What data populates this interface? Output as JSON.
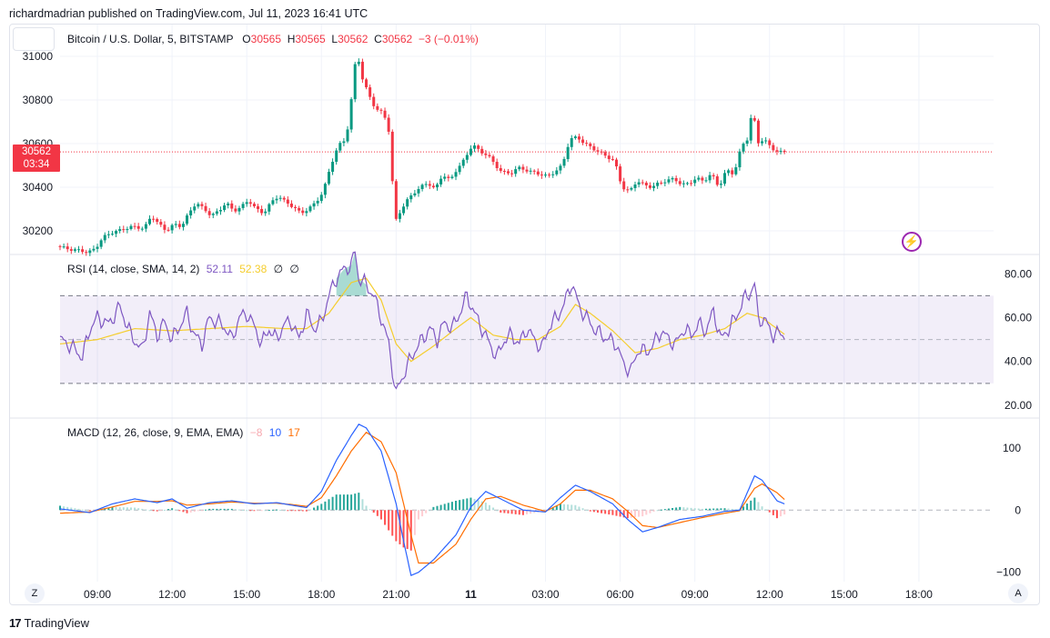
{
  "caption": "richardmadrian published on TradingView.com, Jul 11, 2023 16:41 UTC",
  "legend": {
    "symbol": "Bitcoin / U.S. Dollar, 5, BITSTAMP",
    "o_label": "O",
    "o_value": "30565",
    "h_label": "H",
    "h_value": "30565",
    "l_label": "L",
    "l_value": "30562",
    "c_label": "C",
    "c_value": "30562",
    "change": "−3 (−0.01%)"
  },
  "last_price": {
    "price": "30562",
    "countdown": "03:34"
  },
  "rsi_legend": {
    "title": "RSI (14, close, SMA, 14, 2)",
    "rsi": "52.11",
    "sma": "52.38",
    "n1": "∅",
    "n2": "∅"
  },
  "macd_legend": {
    "title": "MACD (12, 26, close, 9, EMA, EMA)",
    "hist": "−8",
    "macd": "10",
    "signal": "17"
  },
  "buttons": {
    "zoom": "Z",
    "auto": "A"
  },
  "footer": {
    "mark": "17",
    "brand": "TradingView"
  },
  "colors": {
    "up": "#089981",
    "down": "#f23645",
    "rsi": "#7e57c2",
    "rsi_ma": "#f5cd2c",
    "macd": "#2962ff",
    "signal": "#ff6d00"
  },
  "chart_data": [
    {
      "type": "candlestick",
      "x_ticks": [
        "09:00",
        "12:00",
        "15:00",
        "18:00",
        "21:00",
        "11",
        "03:00",
        "06:00",
        "09:00",
        "12:00",
        "15:00",
        "18:00"
      ],
      "y_ticks": [
        "31000",
        "30800",
        "30600",
        "30400",
        "30200"
      ],
      "ylim": [
        30100,
        31050
      ],
      "last_price": 30562,
      "close_path": [
        [
          0,
          30130
        ],
        [
          3,
          30115
        ],
        [
          6,
          30110
        ],
        [
          8,
          30100
        ],
        [
          10,
          30120
        ],
        [
          12,
          30170
        ],
        [
          14,
          30190
        ],
        [
          17,
          30205
        ],
        [
          20,
          30220
        ],
        [
          23,
          30210
        ],
        [
          25,
          30270
        ],
        [
          27,
          30230
        ],
        [
          29,
          30200
        ],
        [
          31,
          30230
        ],
        [
          33,
          30220
        ],
        [
          35,
          30280
        ],
        [
          37,
          30330
        ],
        [
          39,
          30300
        ],
        [
          41,
          30270
        ],
        [
          43,
          30290
        ],
        [
          45,
          30330
        ],
        [
          47,
          30290
        ],
        [
          49,
          30310
        ],
        [
          51,
          30340
        ],
        [
          53,
          30300
        ],
        [
          55,
          30280
        ],
        [
          57,
          30330
        ],
        [
          59,
          30360
        ],
        [
          61,
          30330
        ],
        [
          63,
          30310
        ],
        [
          65,
          30280
        ],
        [
          67,
          30300
        ],
        [
          69,
          30330
        ],
        [
          71,
          30380
        ],
        [
          73,
          30500
        ],
        [
          75,
          30590
        ],
        [
          77,
          30620
        ],
        [
          78,
          30720
        ],
        [
          79,
          30880
        ],
        [
          80,
          31040
        ],
        [
          81,
          30920
        ],
        [
          83,
          30830
        ],
        [
          85,
          30760
        ],
        [
          87,
          30740
        ],
        [
          88,
          30700
        ],
        [
          89,
          30620
        ],
        [
          90,
          30230
        ],
        [
          91,
          30270
        ],
        [
          93,
          30330
        ],
        [
          95,
          30370
        ],
        [
          97,
          30400
        ],
        [
          99,
          30420
        ],
        [
          101,
          30390
        ],
        [
          103,
          30460
        ],
        [
          105,
          30430
        ],
        [
          107,
          30490
        ],
        [
          109,
          30530
        ],
        [
          111,
          30600
        ],
        [
          113,
          30560
        ],
        [
          115,
          30550
        ],
        [
          117,
          30500
        ],
        [
          119,
          30470
        ],
        [
          121,
          30460
        ],
        [
          123,
          30490
        ],
        [
          125,
          30480
        ],
        [
          127,
          30470
        ],
        [
          129,
          30460
        ],
        [
          131,
          30450
        ],
        [
          133,
          30470
        ],
        [
          135,
          30500
        ],
        [
          137,
          30620
        ],
        [
          139,
          30630
        ],
        [
          141,
          30600
        ],
        [
          143,
          30580
        ],
        [
          145,
          30560
        ],
        [
          147,
          30540
        ],
        [
          149,
          30520
        ],
        [
          151,
          30400
        ],
        [
          153,
          30380
        ],
        [
          155,
          30430
        ],
        [
          157,
          30410
        ],
        [
          159,
          30400
        ],
        [
          161,
          30420
        ],
        [
          163,
          30430
        ],
        [
          165,
          30440
        ],
        [
          167,
          30410
        ],
        [
          169,
          30420
        ],
        [
          171,
          30440
        ],
        [
          173,
          30430
        ],
        [
          175,
          30460
        ],
        [
          177,
          30400
        ],
        [
          179,
          30480
        ],
        [
          181,
          30460
        ],
        [
          183,
          30590
        ],
        [
          185,
          30630
        ],
        [
          186,
          30800
        ],
        [
          187,
          30600
        ],
        [
          189,
          30620
        ],
        [
          191,
          30580
        ],
        [
          193,
          30560
        ],
        [
          194,
          30562
        ]
      ]
    },
    {
      "type": "line",
      "name": "RSI",
      "y_ticks": [
        "80.00",
        "60.00",
        "40.00",
        "20.00"
      ],
      "ylim": [
        15,
        88
      ],
      "bands": [
        70,
        50,
        30
      ],
      "rsi_path": [
        [
          0,
          50
        ],
        [
          3,
          47
        ],
        [
          6,
          42
        ],
        [
          8,
          55
        ],
        [
          10,
          60
        ],
        [
          13,
          57
        ],
        [
          16,
          65
        ],
        [
          19,
          52
        ],
        [
          22,
          45
        ],
        [
          24,
          62
        ],
        [
          26,
          52
        ],
        [
          28,
          58
        ],
        [
          30,
          50
        ],
        [
          32,
          56
        ],
        [
          34,
          62
        ],
        [
          36,
          52
        ],
        [
          38,
          48
        ],
        [
          40,
          60
        ],
        [
          42,
          58
        ],
        [
          44,
          56
        ],
        [
          46,
          50
        ],
        [
          48,
          60
        ],
        [
          50,
          62
        ],
        [
          52,
          56
        ],
        [
          54,
          48
        ],
        [
          56,
          55
        ],
        [
          58,
          50
        ],
        [
          60,
          57
        ],
        [
          62,
          58
        ],
        [
          64,
          50
        ],
        [
          66,
          62
        ],
        [
          68,
          55
        ],
        [
          70,
          58
        ],
        [
          72,
          70
        ],
        [
          74,
          78
        ],
        [
          76,
          82
        ],
        [
          78,
          84
        ],
        [
          79,
          90
        ],
        [
          80,
          78
        ],
        [
          82,
          75
        ],
        [
          84,
          70
        ],
        [
          86,
          60
        ],
        [
          88,
          48
        ],
        [
          90,
          25
        ],
        [
          91,
          30
        ],
        [
          93,
          38
        ],
        [
          95,
          45
        ],
        [
          97,
          50
        ],
        [
          99,
          55
        ],
        [
          101,
          50
        ],
        [
          103,
          58
        ],
        [
          105,
          55
        ],
        [
          107,
          62
        ],
        [
          109,
          70
        ],
        [
          111,
          62
        ],
        [
          113,
          55
        ],
        [
          115,
          48
        ],
        [
          117,
          42
        ],
        [
          119,
          50
        ],
        [
          121,
          52
        ],
        [
          123,
          48
        ],
        [
          125,
          55
        ],
        [
          127,
          50
        ],
        [
          129,
          46
        ],
        [
          131,
          56
        ],
        [
          133,
          60
        ],
        [
          135,
          66
        ],
        [
          137,
          76
        ],
        [
          139,
          65
        ],
        [
          141,
          60
        ],
        [
          143,
          55
        ],
        [
          145,
          52
        ],
        [
          147,
          50
        ],
        [
          149,
          48
        ],
        [
          151,
          38
        ],
        [
          153,
          36
        ],
        [
          155,
          46
        ],
        [
          157,
          44
        ],
        [
          159,
          48
        ],
        [
          161,
          54
        ],
        [
          163,
          50
        ],
        [
          165,
          48
        ],
        [
          167,
          55
        ],
        [
          169,
          52
        ],
        [
          171,
          57
        ],
        [
          173,
          54
        ],
        [
          175,
          63
        ],
        [
          177,
          50
        ],
        [
          179,
          55
        ],
        [
          181,
          60
        ],
        [
          183,
          68
        ],
        [
          185,
          72
        ],
        [
          186,
          75
        ],
        [
          187,
          60
        ],
        [
          189,
          58
        ],
        [
          191,
          52
        ],
        [
          193,
          53
        ],
        [
          194,
          52.11
        ]
      ],
      "rsi_ma_path": [
        [
          0,
          48
        ],
        [
          10,
          50
        ],
        [
          20,
          55
        ],
        [
          30,
          54
        ],
        [
          40,
          55
        ],
        [
          50,
          56
        ],
        [
          60,
          55
        ],
        [
          66,
          55
        ],
        [
          72,
          62
        ],
        [
          78,
          76
        ],
        [
          82,
          78
        ],
        [
          86,
          68
        ],
        [
          90,
          48
        ],
        [
          94,
          40
        ],
        [
          100,
          47
        ],
        [
          106,
          55
        ],
        [
          110,
          60
        ],
        [
          116,
          52
        ],
        [
          122,
          50
        ],
        [
          128,
          50
        ],
        [
          134,
          56
        ],
        [
          138,
          66
        ],
        [
          142,
          62
        ],
        [
          148,
          54
        ],
        [
          154,
          44
        ],
        [
          160,
          46
        ],
        [
          166,
          50
        ],
        [
          172,
          52
        ],
        [
          178,
          55
        ],
        [
          184,
          62
        ],
        [
          188,
          60
        ],
        [
          194,
          52.38
        ]
      ]
    },
    {
      "type": "line",
      "name": "MACD",
      "y_ticks": [
        "100",
        "0",
        "−100"
      ],
      "ylim": [
        -115,
        145
      ],
      "zero": 0,
      "macd_path": [
        [
          0,
          2
        ],
        [
          8,
          -4
        ],
        [
          14,
          10
        ],
        [
          20,
          18
        ],
        [
          26,
          12
        ],
        [
          30,
          18
        ],
        [
          34,
          3
        ],
        [
          40,
          12
        ],
        [
          46,
          15
        ],
        [
          52,
          10
        ],
        [
          58,
          12
        ],
        [
          62,
          8
        ],
        [
          66,
          4
        ],
        [
          70,
          30
        ],
        [
          74,
          80
        ],
        [
          78,
          120
        ],
        [
          80,
          138
        ],
        [
          82,
          132
        ],
        [
          86,
          95
        ],
        [
          90,
          10
        ],
        [
          92,
          -50
        ],
        [
          94,
          -105
        ],
        [
          96,
          -100
        ],
        [
          100,
          -80
        ],
        [
          106,
          -40
        ],
        [
          110,
          5
        ],
        [
          114,
          30
        ],
        [
          118,
          18
        ],
        [
          124,
          0
        ],
        [
          130,
          -3
        ],
        [
          134,
          20
        ],
        [
          138,
          40
        ],
        [
          142,
          30
        ],
        [
          148,
          10
        ],
        [
          152,
          -15
        ],
        [
          156,
          -35
        ],
        [
          160,
          -28
        ],
        [
          166,
          -15
        ],
        [
          172,
          -10
        ],
        [
          178,
          -2
        ],
        [
          182,
          0
        ],
        [
          186,
          55
        ],
        [
          188,
          48
        ],
        [
          192,
          15
        ],
        [
          194,
          10
        ]
      ],
      "signal_path": [
        [
          0,
          -5
        ],
        [
          8,
          -3
        ],
        [
          14,
          5
        ],
        [
          20,
          14
        ],
        [
          26,
          14
        ],
        [
          30,
          15
        ],
        [
          34,
          8
        ],
        [
          40,
          10
        ],
        [
          46,
          13
        ],
        [
          52,
          11
        ],
        [
          58,
          11
        ],
        [
          62,
          9
        ],
        [
          66,
          6
        ],
        [
          70,
          20
        ],
        [
          74,
          55
        ],
        [
          78,
          95
        ],
        [
          82,
          125
        ],
        [
          86,
          110
        ],
        [
          90,
          60
        ],
        [
          92,
          10
        ],
        [
          94,
          -40
        ],
        [
          96,
          -85
        ],
        [
          100,
          -85
        ],
        [
          106,
          -55
        ],
        [
          110,
          -15
        ],
        [
          114,
          18
        ],
        [
          118,
          22
        ],
        [
          124,
          8
        ],
        [
          130,
          -2
        ],
        [
          134,
          10
        ],
        [
          138,
          32
        ],
        [
          142,
          32
        ],
        [
          148,
          18
        ],
        [
          152,
          -2
        ],
        [
          156,
          -25
        ],
        [
          160,
          -28
        ],
        [
          166,
          -20
        ],
        [
          172,
          -12
        ],
        [
          178,
          -5
        ],
        [
          182,
          -1
        ],
        [
          186,
          35
        ],
        [
          188,
          42
        ],
        [
          192,
          28
        ],
        [
          194,
          17
        ]
      ]
    }
  ]
}
